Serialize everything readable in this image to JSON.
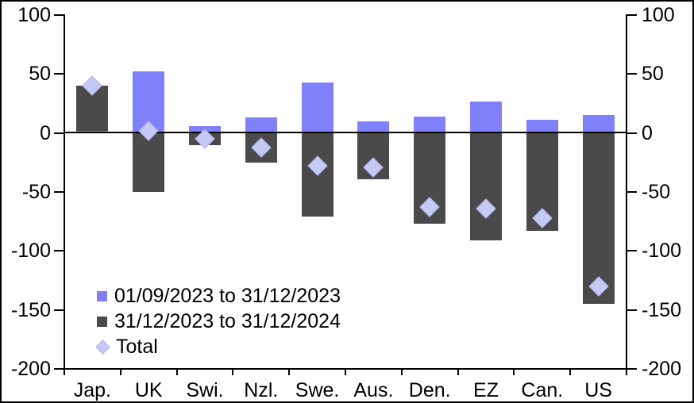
{
  "chart_data": {
    "type": "bar",
    "stacked": true,
    "title": "",
    "xlabel": "",
    "ylabel": "",
    "categories": [
      "Jap.",
      "UK",
      "Swi.",
      "Nzl.",
      "Swe.",
      "Aus.",
      "Den.",
      "EZ",
      "Can.",
      "US"
    ],
    "series": [
      {
        "name": "01/09/2023 to 31/12/2023",
        "color": "#8081fa",
        "values": [
          2,
          52,
          6,
          13,
          43,
          10,
          14,
          27,
          11,
          15
        ]
      },
      {
        "name": "31/12/2023 to 31/12/2024",
        "color": "#4a4a4a",
        "values": [
          38,
          -50,
          -10,
          -25,
          -71,
          -39,
          -77,
          -91,
          -83,
          -145
        ]
      }
    ],
    "total_series": {
      "name": "Total",
      "marker": "diamond",
      "color": "#c6c9f4",
      "values": [
        40,
        2,
        -5,
        -12,
        -28,
        -29,
        -63,
        -64,
        -72,
        -130
      ]
    },
    "ylim": [
      -200,
      100
    ],
    "yticks": [
      100,
      50,
      0,
      -50,
      -100,
      -150,
      -200
    ],
    "axis_color": "#000000",
    "grid": false,
    "axes": {
      "left": true,
      "right": true
    },
    "legend_position": "inside-bottom-left"
  }
}
